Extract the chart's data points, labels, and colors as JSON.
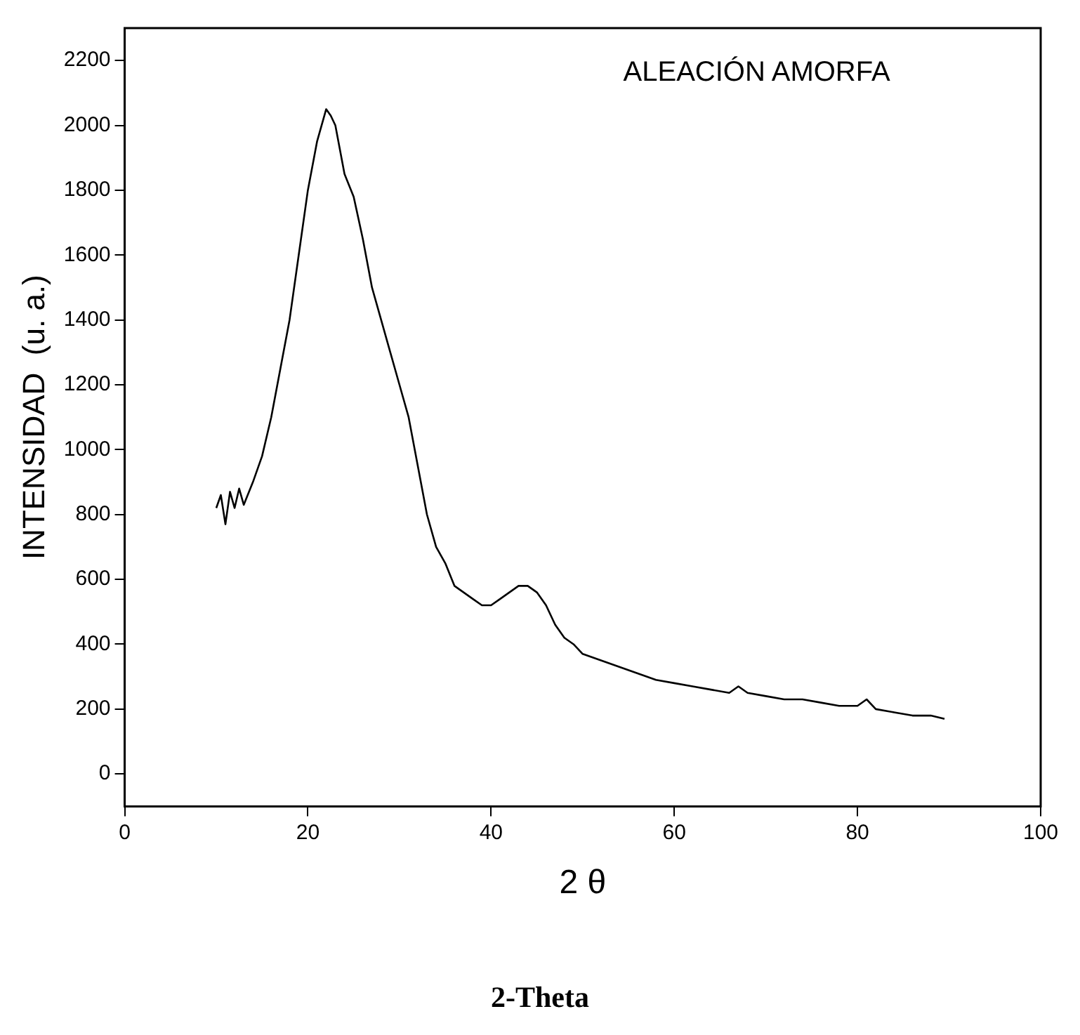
{
  "chart_data": {
    "type": "line",
    "xlabel": "2 θ",
    "ylabel": "INTENSIDAD  (u. a.)",
    "x": [
      10,
      10.5,
      11,
      11.5,
      12,
      12.5,
      13,
      14,
      15,
      16,
      17,
      18,
      19,
      20,
      21,
      22,
      22.5,
      23,
      24,
      25,
      26,
      27,
      28,
      29,
      30,
      31,
      32,
      33,
      34,
      35,
      36,
      37,
      38,
      39,
      40,
      41,
      42,
      43,
      44,
      45,
      46,
      47,
      48,
      49,
      50,
      52,
      54,
      56,
      58,
      60,
      62,
      64,
      66,
      67,
      68,
      70,
      72,
      74,
      76,
      78,
      80,
      81,
      82,
      84,
      86,
      88,
      89.5
    ],
    "series": [
      {
        "color": "#000000",
        "values": [
          820,
          860,
          770,
          870,
          820,
          880,
          830,
          900,
          980,
          1100,
          1250,
          1400,
          1600,
          1800,
          1950,
          2050,
          2030,
          2000,
          1850,
          1780,
          1650,
          1500,
          1400,
          1300,
          1200,
          1100,
          950,
          800,
          700,
          650,
          580,
          560,
          540,
          520,
          520,
          540,
          560,
          580,
          580,
          560,
          520,
          460,
          420,
          400,
          370,
          350,
          330,
          310,
          290,
          280,
          270,
          260,
          250,
          270,
          250,
          240,
          230,
          230,
          220,
          210,
          210,
          230,
          200,
          190,
          180,
          180,
          170
        ]
      }
    ],
    "xlim": [
      0,
      100
    ],
    "xticks": [
      0,
      20,
      40,
      60,
      80,
      100
    ],
    "ylim": [
      -100,
      2300
    ],
    "yticks": [
      0,
      200,
      400,
      600,
      800,
      1000,
      1200,
      1400,
      1600,
      1800,
      2000,
      2200
    ],
    "grid": false,
    "legend": false,
    "marker": "none",
    "line_style": "solid",
    "annotations": [
      "ALEACIÓN AMORFA",
      "2-Theta"
    ]
  }
}
